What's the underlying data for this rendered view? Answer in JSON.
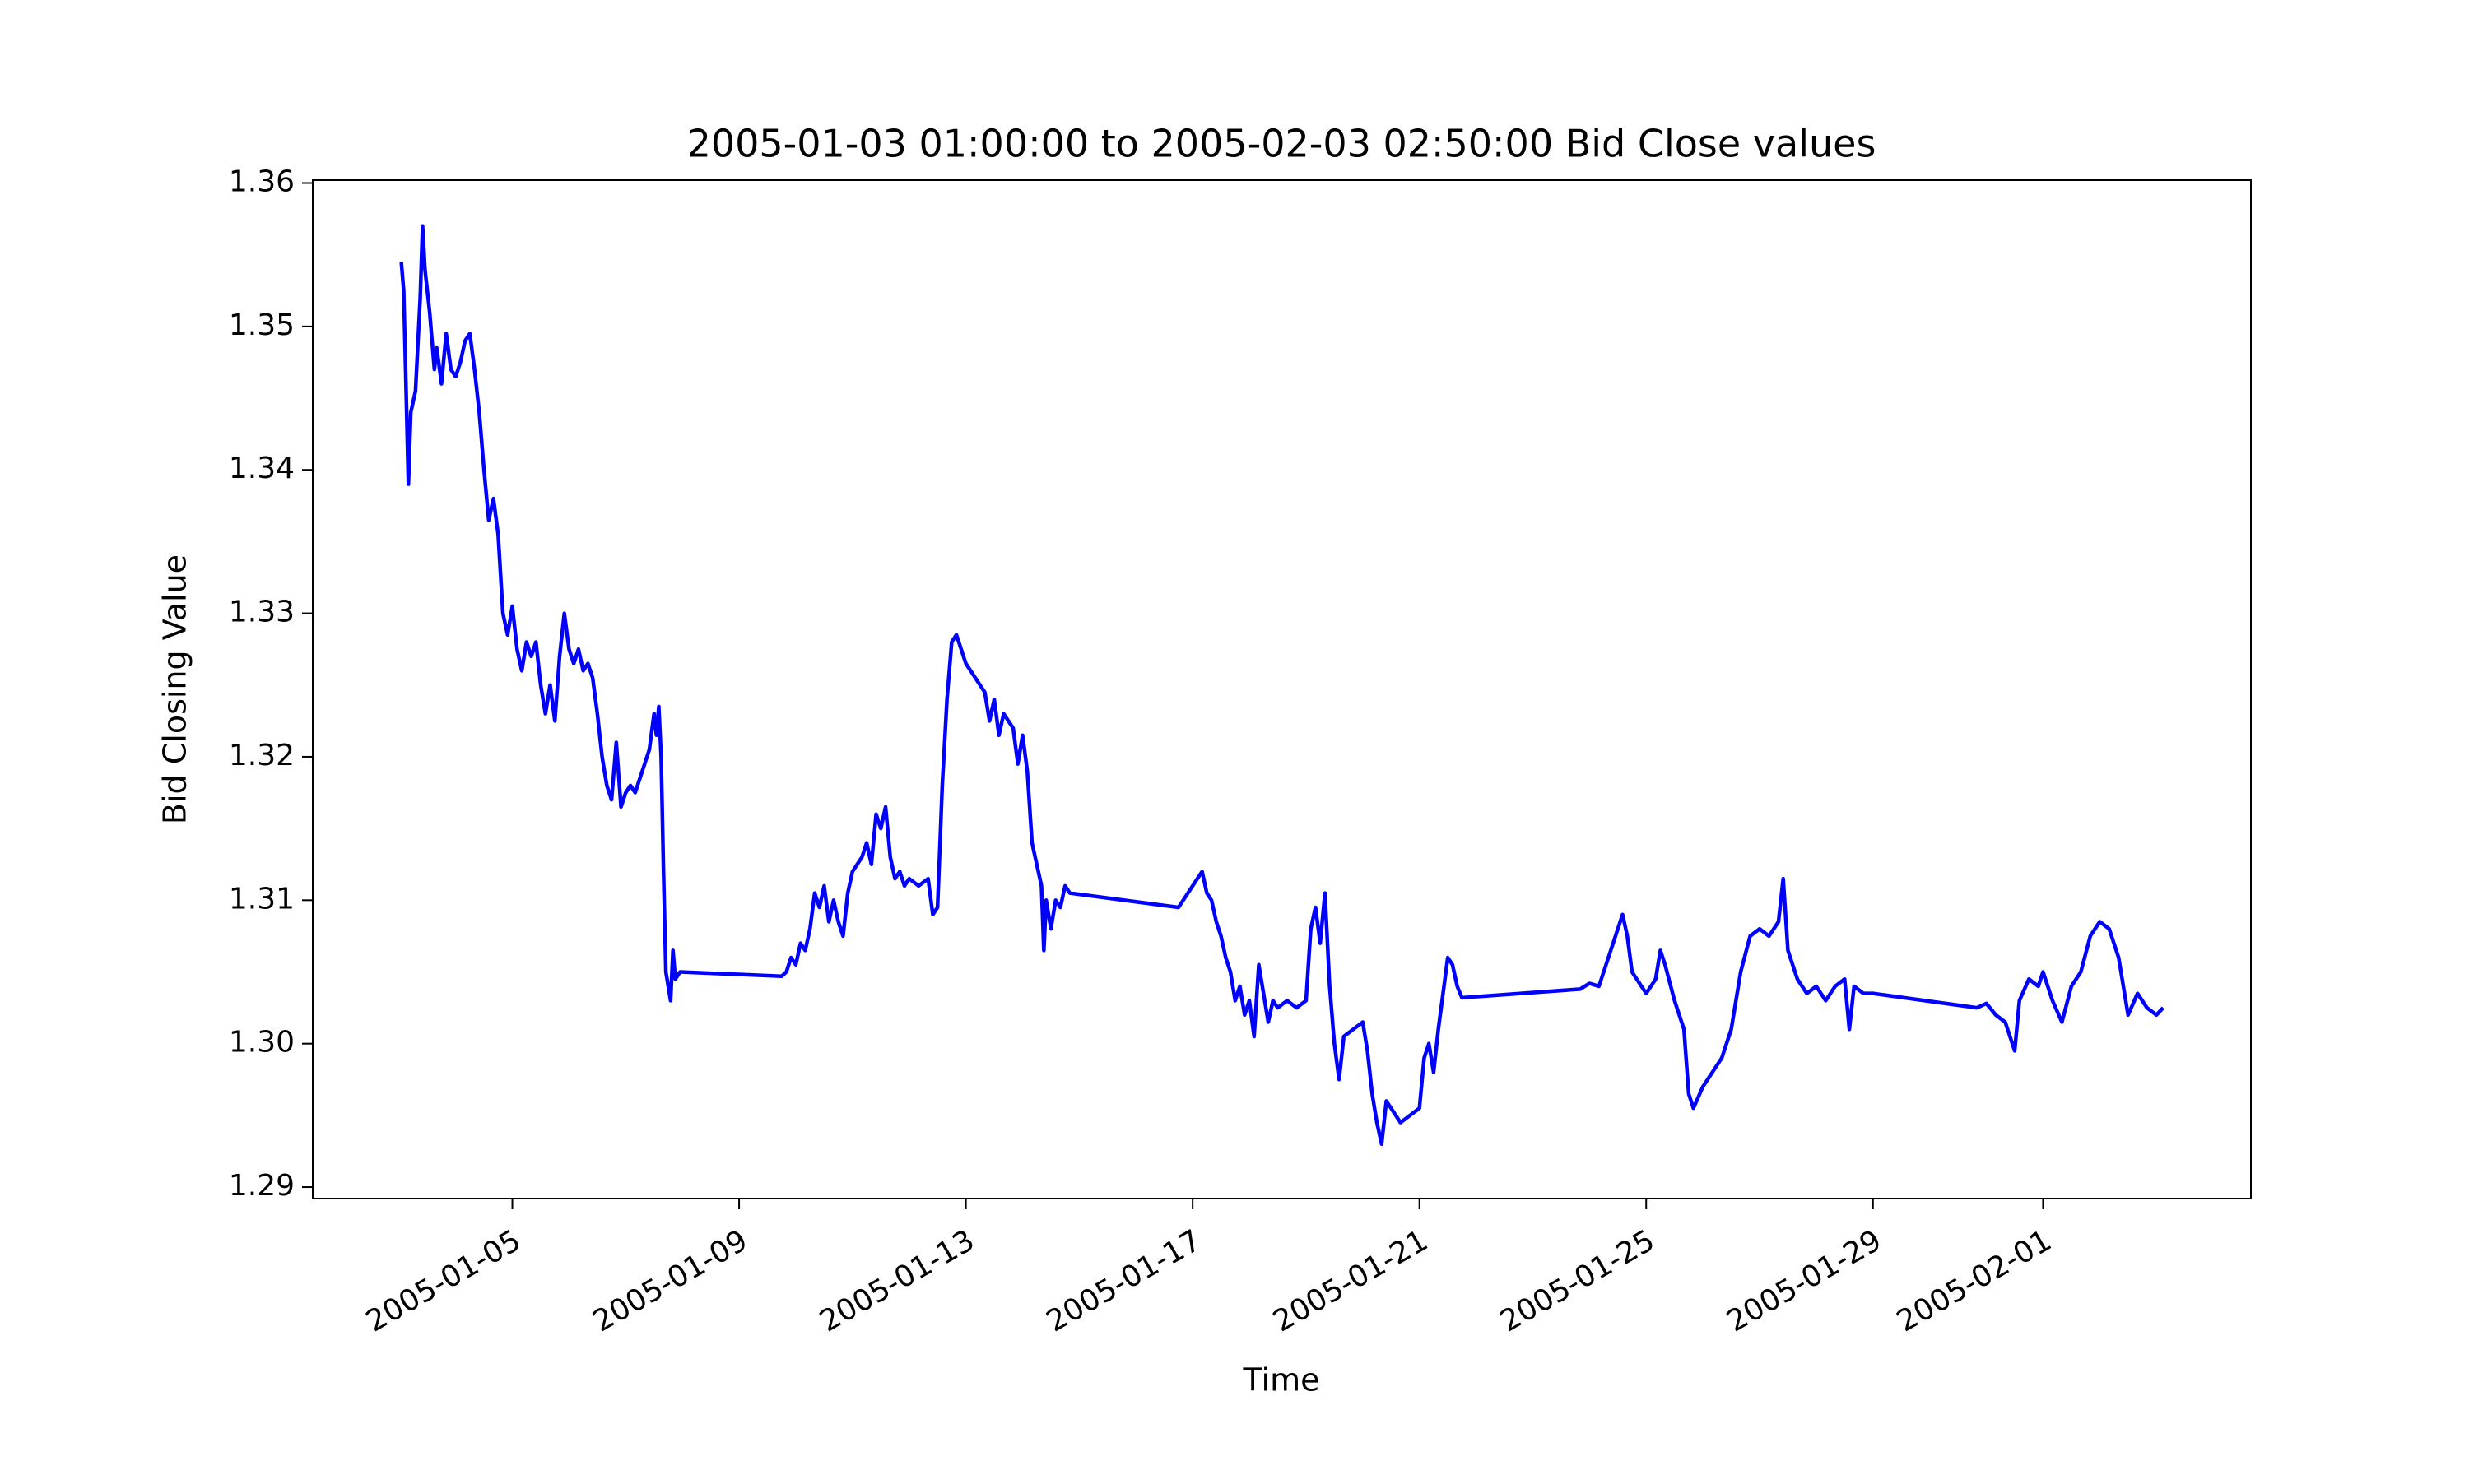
{
  "chart_data": {
    "type": "line",
    "title": "2005-01-03 01:00:00 to 2005-02-03 02:50:00 Bid Close values",
    "x_label": "Time",
    "y_label": "Bid Closing Value",
    "xlim": [
      "2005-01-01T11:30",
      "2005-02-04T16:00"
    ],
    "xticks": [
      "2005-01-05",
      "2005-01-09",
      "2005-01-13",
      "2005-01-17",
      "2005-01-21",
      "2005-01-25",
      "2005-01-29",
      "2005-02-01"
    ],
    "ylim": [
      1.2892,
      1.3602
    ],
    "yticks": [
      1.29,
      {
        "value": 1.3,
        "label": "1.30"
      },
      1.31,
      1.32,
      1.33,
      1.34,
      1.35,
      1.36
    ],
    "x": [
      "2005-01-03T01:00",
      "2005-01-03T02:00",
      "2005-01-03T04:00",
      "2005-01-03T05:00",
      "2005-01-03T07:00",
      "2005-01-03T09:00",
      "2005-01-03T10:00",
      "2005-01-03T11:00",
      "2005-01-03T13:00",
      "2005-01-03T15:00",
      "2005-01-03T16:00",
      "2005-01-03T18:00",
      "2005-01-03T20:00",
      "2005-01-03T22:00",
      "2005-01-04T00:00",
      "2005-01-04T02:00",
      "2005-01-04T04:00",
      "2005-01-04T06:00",
      "2005-01-04T08:00",
      "2005-01-04T10:00",
      "2005-01-04T12:00",
      "2005-01-04T14:00",
      "2005-01-04T16:00",
      "2005-01-04T18:00",
      "2005-01-04T20:00",
      "2005-01-04T22:00",
      "2005-01-05T00:00",
      "2005-01-05T02:00",
      "2005-01-05T04:00",
      "2005-01-05T06:00",
      "2005-01-05T08:00",
      "2005-01-05T10:00",
      "2005-01-05T12:00",
      "2005-01-05T14:00",
      "2005-01-05T16:00",
      "2005-01-05T18:00",
      "2005-01-05T20:00",
      "2005-01-05T22:00",
      "2005-01-06T00:00",
      "2005-01-06T02:00",
      "2005-01-06T04:00",
      "2005-01-06T06:00",
      "2005-01-06T08:00",
      "2005-01-06T10:00",
      "2005-01-06T12:00",
      "2005-01-06T14:00",
      "2005-01-06T16:00",
      "2005-01-06T18:00",
      "2005-01-06T20:00",
      "2005-01-06T22:00",
      "2005-01-07T00:00",
      "2005-01-07T02:00",
      "2005-01-07T04:00",
      "2005-01-07T06:00",
      "2005-01-07T08:00",
      "2005-01-07T10:00",
      "2005-01-07T12:00",
      "2005-01-07T13:00",
      "2005-01-07T14:00",
      "2005-01-07T15:00",
      "2005-01-07T16:00",
      "2005-01-07T17:00",
      "2005-01-07T19:00",
      "2005-01-07T20:00",
      "2005-01-07T21:00",
      "2005-01-07T23:00",
      "2005-01-09T18:00",
      "2005-01-09T20:00",
      "2005-01-09T22:00",
      "2005-01-10T00:00",
      "2005-01-10T02:00",
      "2005-01-10T04:00",
      "2005-01-10T06:00",
      "2005-01-10T08:00",
      "2005-01-10T10:00",
      "2005-01-10T12:00",
      "2005-01-10T14:00",
      "2005-01-10T16:00",
      "2005-01-10T18:00",
      "2005-01-10T20:00",
      "2005-01-10T22:00",
      "2005-01-11T00:00",
      "2005-01-11T02:00",
      "2005-01-11T04:00",
      "2005-01-11T06:00",
      "2005-01-11T08:00",
      "2005-01-11T10:00",
      "2005-01-11T12:00",
      "2005-01-11T14:00",
      "2005-01-11T16:00",
      "2005-01-11T18:00",
      "2005-01-11T20:00",
      "2005-01-11T22:00",
      "2005-01-12T00:00",
      "2005-01-12T04:00",
      "2005-01-12T08:00",
      "2005-01-12T10:00",
      "2005-01-12T12:00",
      "2005-01-12T14:00",
      "2005-01-12T16:00",
      "2005-01-12T18:00",
      "2005-01-12T20:00",
      "2005-01-13T00:00",
      "2005-01-13T04:00",
      "2005-01-13T08:00",
      "2005-01-13T10:00",
      "2005-01-13T12:00",
      "2005-01-13T14:00",
      "2005-01-13T16:00",
      "2005-01-13T20:00",
      "2005-01-13T22:00",
      "2005-01-14T00:00",
      "2005-01-14T02:00",
      "2005-01-14T04:00",
      "2005-01-14T06:00",
      "2005-01-14T08:00",
      "2005-01-14T09:00",
      "2005-01-14T10:00",
      "2005-01-14T12:00",
      "2005-01-14T14:00",
      "2005-01-14T16:00",
      "2005-01-14T18:00",
      "2005-01-14T20:00",
      "2005-01-16T18:00",
      "2005-01-16T20:00",
      "2005-01-16T22:00",
      "2005-01-17T00:00",
      "2005-01-17T04:00",
      "2005-01-17T06:00",
      "2005-01-17T08:00",
      "2005-01-17T10:00",
      "2005-01-17T12:00",
      "2005-01-17T14:00",
      "2005-01-17T16:00",
      "2005-01-17T18:00",
      "2005-01-17T20:00",
      "2005-01-17T22:00",
      "2005-01-18T00:00",
      "2005-01-18T02:00",
      "2005-01-18T04:00",
      "2005-01-18T06:00",
      "2005-01-18T08:00",
      "2005-01-18T10:00",
      "2005-01-18T12:00",
      "2005-01-18T16:00",
      "2005-01-18T20:00",
      "2005-01-19T00:00",
      "2005-01-19T02:00",
      "2005-01-19T04:00",
      "2005-01-19T06:00",
      "2005-01-19T08:00",
      "2005-01-19T10:00",
      "2005-01-19T12:00",
      "2005-01-19T14:00",
      "2005-01-19T16:00",
      "2005-01-19T20:00",
      "2005-01-20T00:00",
      "2005-01-20T02:00",
      "2005-01-20T04:00",
      "2005-01-20T06:00",
      "2005-01-20T08:00",
      "2005-01-20T10:00",
      "2005-01-20T12:00",
      "2005-01-20T16:00",
      "2005-01-20T20:00",
      "2005-01-21T00:00",
      "2005-01-21T02:00",
      "2005-01-21T04:00",
      "2005-01-21T06:00",
      "2005-01-21T08:00",
      "2005-01-21T10:00",
      "2005-01-21T12:00",
      "2005-01-21T14:00",
      "2005-01-21T16:00",
      "2005-01-21T18:00",
      "2005-01-23T20:00",
      "2005-01-24T00:00",
      "2005-01-24T04:00",
      "2005-01-24T08:00",
      "2005-01-24T12:00",
      "2005-01-24T14:00",
      "2005-01-24T16:00",
      "2005-01-24T18:00",
      "2005-01-24T20:00",
      "2005-01-25T00:00",
      "2005-01-25T04:00",
      "2005-01-25T06:00",
      "2005-01-25T08:00",
      "2005-01-25T12:00",
      "2005-01-25T16:00",
      "2005-01-25T18:00",
      "2005-01-25T20:00",
      "2005-01-26T00:00",
      "2005-01-26T04:00",
      "2005-01-26T08:00",
      "2005-01-26T12:00",
      "2005-01-26T16:00",
      "2005-01-26T20:00",
      "2005-01-27T00:00",
      "2005-01-27T04:00",
      "2005-01-27T08:00",
      "2005-01-27T10:00",
      "2005-01-27T12:00",
      "2005-01-27T16:00",
      "2005-01-27T20:00",
      "2005-01-28T00:00",
      "2005-01-28T04:00",
      "2005-01-28T08:00",
      "2005-01-28T12:00",
      "2005-01-28T14:00",
      "2005-01-28T16:00",
      "2005-01-28T20:00",
      "2005-01-29T00:00",
      "2005-01-30T20:00",
      "2005-01-31T00:00",
      "2005-01-31T04:00",
      "2005-01-31T08:00",
      "2005-01-31T12:00",
      "2005-01-31T14:00",
      "2005-01-31T18:00",
      "2005-01-31T22:00",
      "2005-02-01T00:00",
      "2005-02-01T04:00",
      "2005-02-01T08:00",
      "2005-02-01T12:00",
      "2005-02-01T16:00",
      "2005-02-01T20:00",
      "2005-02-02T00:00",
      "2005-02-02T04:00",
      "2005-02-02T08:00",
      "2005-02-02T12:00",
      "2005-02-02T16:00",
      "2005-02-02T20:00",
      "2005-02-03T00:00",
      "2005-02-03T02:50"
    ],
    "series": [
      {
        "color": "#0000ff",
        "values": [
          1.3545,
          1.3525,
          1.339,
          1.344,
          1.3455,
          1.352,
          1.357,
          1.354,
          1.351,
          1.347,
          1.3485,
          1.346,
          1.3495,
          1.347,
          1.3465,
          1.3475,
          1.349,
          1.3495,
          1.347,
          1.344,
          1.34,
          1.3365,
          1.338,
          1.3355,
          1.33,
          1.3285,
          1.3305,
          1.3275,
          1.326,
          1.328,
          1.327,
          1.328,
          1.325,
          1.323,
          1.325,
          1.3225,
          1.327,
          1.33,
          1.3275,
          1.3265,
          1.3275,
          1.326,
          1.3265,
          1.3255,
          1.323,
          1.32,
          1.318,
          1.317,
          1.321,
          1.3165,
          1.3175,
          1.318,
          1.3175,
          1.3185,
          1.3195,
          1.3205,
          1.323,
          1.3215,
          1.3235,
          1.32,
          1.312,
          1.305,
          1.303,
          1.3065,
          1.3045,
          1.305,
          1.3047,
          1.305,
          1.306,
          1.3055,
          1.307,
          1.3065,
          1.308,
          1.3105,
          1.3095,
          1.311,
          1.3085,
          1.31,
          1.3085,
          1.3075,
          1.3105,
          1.312,
          1.3125,
          1.313,
          1.314,
          1.3125,
          1.316,
          1.315,
          1.3165,
          1.313,
          1.3115,
          1.312,
          1.311,
          1.3115,
          1.311,
          1.3115,
          1.309,
          1.3095,
          1.318,
          1.324,
          1.328,
          1.3285,
          1.3265,
          1.3255,
          1.3245,
          1.3225,
          1.324,
          1.3215,
          1.323,
          1.322,
          1.3195,
          1.3215,
          1.319,
          1.314,
          1.3125,
          1.311,
          1.3065,
          1.31,
          1.308,
          1.31,
          1.3095,
          1.311,
          1.3105,
          1.3095,
          1.31,
          1.3105,
          1.311,
          1.312,
          1.3105,
          1.31,
          1.3085,
          1.3075,
          1.306,
          1.305,
          1.303,
          1.304,
          1.302,
          1.303,
          1.3005,
          1.3055,
          1.3035,
          1.3015,
          1.303,
          1.3025,
          1.303,
          1.3025,
          1.303,
          1.308,
          1.3095,
          1.307,
          1.3105,
          1.304,
          1.3,
          1.2975,
          1.3005,
          1.301,
          1.3015,
          1.2995,
          1.2965,
          1.2945,
          1.293,
          1.296,
          1.2955,
          1.2945,
          1.295,
          1.2955,
          1.299,
          1.3,
          1.298,
          1.301,
          1.3035,
          1.306,
          1.3055,
          1.304,
          1.3032,
          1.3038,
          1.3042,
          1.304,
          1.306,
          1.308,
          1.309,
          1.3075,
          1.305,
          1.3045,
          1.3035,
          1.3045,
          1.3065,
          1.3055,
          1.303,
          1.301,
          1.2965,
          1.2955,
          1.297,
          1.298,
          1.299,
          1.301,
          1.305,
          1.3075,
          1.308,
          1.3075,
          1.3085,
          1.3115,
          1.3065,
          1.3045,
          1.3035,
          1.304,
          1.303,
          1.304,
          1.3045,
          1.301,
          1.304,
          1.3035,
          1.3035,
          1.3025,
          1.3028,
          1.302,
          1.3015,
          1.2995,
          1.303,
          1.3045,
          1.304,
          1.305,
          1.303,
          1.3015,
          1.304,
          1.305,
          1.3075,
          1.3085,
          1.308,
          1.306,
          1.302,
          1.3035,
          1.3025,
          1.302,
          1.3025
        ]
      }
    ]
  }
}
